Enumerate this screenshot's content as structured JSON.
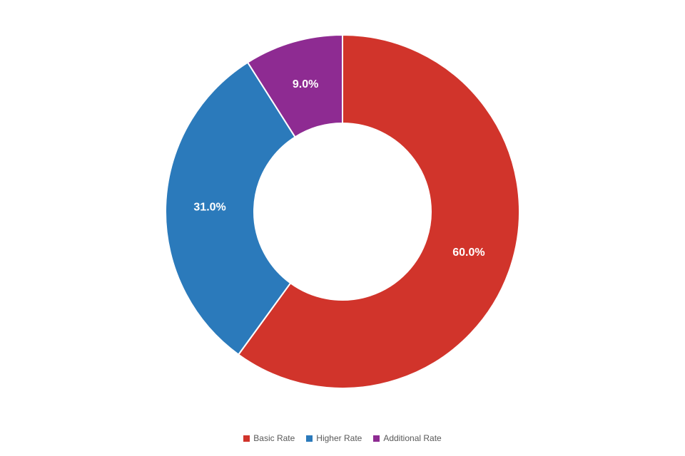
{
  "chart_data": {
    "type": "pie",
    "subtype": "donut",
    "title": "",
    "categories": [
      "Basic Rate",
      "Higher Rate",
      "Additional Rate"
    ],
    "values": [
      60.0,
      31.0,
      9.0
    ],
    "labels": [
      "60.0%",
      "31.0%",
      "9.0%"
    ],
    "colors": [
      "#D1342B",
      "#2B7ABB",
      "#8E2B92"
    ],
    "label_color": "#FFFFFF",
    "slice_border_color": "#FFFFFF",
    "legend_position": "bottom",
    "legend_text_color": "#595959",
    "start_angle_deg": 0,
    "direction": "clockwise",
    "background_color": "#FFFFFF"
  }
}
